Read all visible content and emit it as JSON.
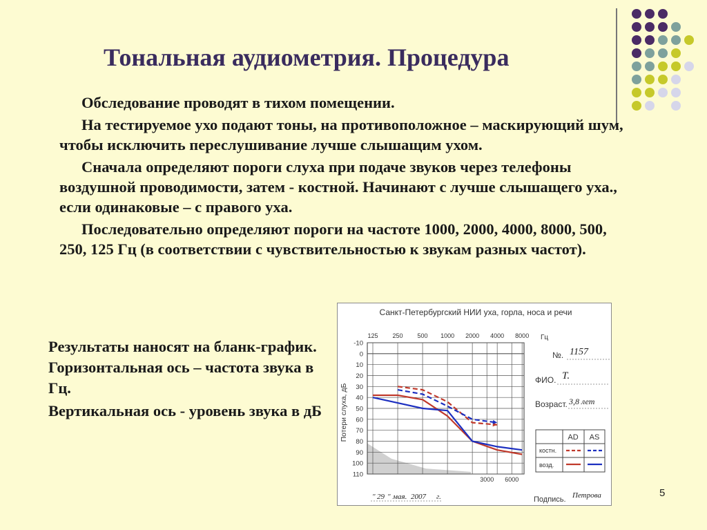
{
  "title": "Тональная аудиометрия. Процедура",
  "paragraphs": [
    "Обследование проводят в тихом помещении.",
    "На тестируемое ухо подают тоны, на противоположное – маскирующий шум, чтобы исключить переслушивание лучше слышащим ухом.",
    "Сначала определяют пороги слуха при подаче звуков через телефоны воздушной проводимости, затем - костной. Начинают с лучше слышащего уха., если одинаковые – с правого уха.",
    "Последовательно определяют пороги на частоте 1000, 2000, 4000, 8000, 500, 250, 125 Гц (в соответствии с чувствительностью к звукам разных частот)."
  ],
  "side_paragraphs": [
    "Результаты наносят на бланк-график. Горизонтальная ось – частота звука в Гц.",
    "Вертикальная ось - уровень звука в дБ"
  ],
  "page_number": "5",
  "form": {
    "header": "Санкт-Петербургский НИИ уха, горла, носа и речи",
    "no_label": "№.",
    "no_value": "1157",
    "fio_label": "ФИО.",
    "fio_value": "Т.",
    "age_label": "Возраст.",
    "age_value": "3,8 лет",
    "date_quote_open": "\"",
    "date_day": "29",
    "date_quote_close": "\"",
    "date_month": "мая.",
    "date_year": "2007",
    "date_suffix": "г.",
    "sign_label": "Подпись.",
    "sign_value": "Петрова",
    "legend": {
      "col_ad": "AD",
      "col_as": "AS",
      "row_bone": "костн.",
      "row_air": "возд."
    }
  },
  "chart_data": {
    "type": "line",
    "xlabel": "Гц",
    "ylabel": "Потери слуха, дБ",
    "x_ticks_top": [
      "125",
      "250",
      "500",
      "1000",
      "2000",
      "4000",
      "8000"
    ],
    "x_ticks_bottom": [
      "3000",
      "6000"
    ],
    "y_ticks": [
      "-10",
      "0",
      "10",
      "20",
      "30",
      "40",
      "50",
      "60",
      "70",
      "80",
      "90",
      "100",
      "110"
    ],
    "ylim": [
      -10,
      110
    ],
    "x_positions_hz": [
      125,
      250,
      500,
      1000,
      2000,
      3000,
      4000,
      6000,
      8000
    ],
    "series": [
      {
        "name": "AD костн.",
        "color": "#c0392b",
        "dashed": true,
        "x": [
          250,
          500,
          1000,
          2000,
          4000
        ],
        "y": [
          30,
          33,
          44,
          63,
          65
        ]
      },
      {
        "name": "AS костн.",
        "color": "#1c2fc0",
        "dashed": true,
        "x": [
          250,
          500,
          1000,
          2000,
          4000
        ],
        "y": [
          33,
          37,
          48,
          60,
          63
        ]
      },
      {
        "name": "AD возд.",
        "color": "#c0392b",
        "dashed": false,
        "x": [
          125,
          250,
          500,
          1000,
          2000,
          4000,
          8000
        ],
        "y": [
          38,
          38,
          42,
          57,
          80,
          88,
          92
        ]
      },
      {
        "name": "AS возд.",
        "color": "#1c2fc0",
        "dashed": false,
        "x": [
          125,
          250,
          500,
          1000,
          2000,
          4000,
          8000
        ],
        "y": [
          40,
          45,
          50,
          52,
          80,
          85,
          88
        ]
      }
    ],
    "colors": {
      "ad": "#c0392b",
      "as": "#1c2fc0"
    }
  },
  "palette": {
    "background": "#fdfbd2",
    "title": "#3a2c5e",
    "dot_purple": "#4b2b66",
    "dot_teal": "#7ea19c",
    "dot_olive": "#c6c92a",
    "dot_lavender": "#d6d6ea"
  }
}
